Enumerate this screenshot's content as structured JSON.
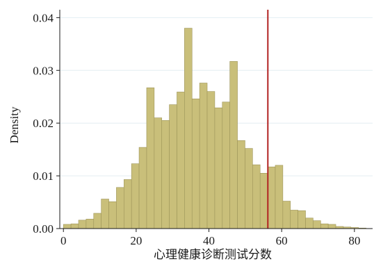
{
  "chart_data": {
    "type": "bar",
    "title": "",
    "xlabel": "心理健康诊断测试分数",
    "ylabel": "Density",
    "xlim": [
      -1,
      85
    ],
    "ylim": [
      0,
      0.0415
    ],
    "x_ticks": [
      0,
      20,
      40,
      60,
      80
    ],
    "y_ticks": [
      0,
      0.01,
      0.02,
      0.03,
      0.04
    ],
    "y_tick_labels": [
      "0.00",
      "0.01",
      "0.02",
      "0.03",
      "0.04"
    ],
    "bin_width": 2.08,
    "bins": [
      {
        "x0": 0.0,
        "x1": 2.08,
        "density": 0.0008
      },
      {
        "x0": 2.08,
        "x1": 4.16,
        "density": 0.0009
      },
      {
        "x0": 4.16,
        "x1": 6.24,
        "density": 0.0016
      },
      {
        "x0": 6.24,
        "x1": 8.32,
        "density": 0.0018
      },
      {
        "x0": 8.32,
        "x1": 10.4,
        "density": 0.0029
      },
      {
        "x0": 10.4,
        "x1": 12.48,
        "density": 0.0056
      },
      {
        "x0": 12.48,
        "x1": 14.56,
        "density": 0.0051
      },
      {
        "x0": 14.56,
        "x1": 16.64,
        "density": 0.0078
      },
      {
        "x0": 16.64,
        "x1": 18.72,
        "density": 0.0093
      },
      {
        "x0": 18.72,
        "x1": 20.8,
        "density": 0.0123
      },
      {
        "x0": 20.8,
        "x1": 22.88,
        "density": 0.0154
      },
      {
        "x0": 22.88,
        "x1": 24.96,
        "density": 0.0267
      },
      {
        "x0": 24.96,
        "x1": 27.04,
        "density": 0.021
      },
      {
        "x0": 27.04,
        "x1": 29.12,
        "density": 0.0205
      },
      {
        "x0": 29.12,
        "x1": 31.2,
        "density": 0.0235
      },
      {
        "x0": 31.2,
        "x1": 33.28,
        "density": 0.0259
      },
      {
        "x0": 33.28,
        "x1": 35.36,
        "density": 0.038
      },
      {
        "x0": 35.36,
        "x1": 37.44,
        "density": 0.0246
      },
      {
        "x0": 37.44,
        "x1": 39.52,
        "density": 0.0276
      },
      {
        "x0": 39.52,
        "x1": 41.6,
        "density": 0.026
      },
      {
        "x0": 41.6,
        "x1": 43.68,
        "density": 0.0229
      },
      {
        "x0": 43.68,
        "x1": 45.76,
        "density": 0.024
      },
      {
        "x0": 45.76,
        "x1": 47.84,
        "density": 0.0317
      },
      {
        "x0": 47.84,
        "x1": 49.92,
        "density": 0.0167
      },
      {
        "x0": 49.92,
        "x1": 52.0,
        "density": 0.0152
      },
      {
        "x0": 52.0,
        "x1": 54.08,
        "density": 0.0121
      },
      {
        "x0": 54.08,
        "x1": 56.16,
        "density": 0.0105
      },
      {
        "x0": 56.16,
        "x1": 58.24,
        "density": 0.0117
      },
      {
        "x0": 58.24,
        "x1": 60.32,
        "density": 0.012
      },
      {
        "x0": 60.32,
        "x1": 62.4,
        "density": 0.0052
      },
      {
        "x0": 62.4,
        "x1": 64.48,
        "density": 0.0035
      },
      {
        "x0": 64.48,
        "x1": 66.56,
        "density": 0.0034
      },
      {
        "x0": 66.56,
        "x1": 68.64,
        "density": 0.002
      },
      {
        "x0": 68.64,
        "x1": 70.72,
        "density": 0.0015
      },
      {
        "x0": 70.72,
        "x1": 72.8,
        "density": 0.0009
      },
      {
        "x0": 72.8,
        "x1": 74.88,
        "density": 0.0008
      },
      {
        "x0": 74.88,
        "x1": 76.96,
        "density": 0.0004
      },
      {
        "x0": 76.96,
        "x1": 79.04,
        "density": 0.0003
      },
      {
        "x0": 79.04,
        "x1": 81.12,
        "density": 0.0002
      },
      {
        "x0": 81.12,
        "x1": 83.2,
        "density": 0.0001
      }
    ],
    "reference_line": {
      "x": 56.2,
      "color": "#b22222"
    },
    "bar_fill": "#c9bf7a",
    "bar_stroke": "#9e955a",
    "grid": true,
    "grid_color": "#e3eef2"
  }
}
